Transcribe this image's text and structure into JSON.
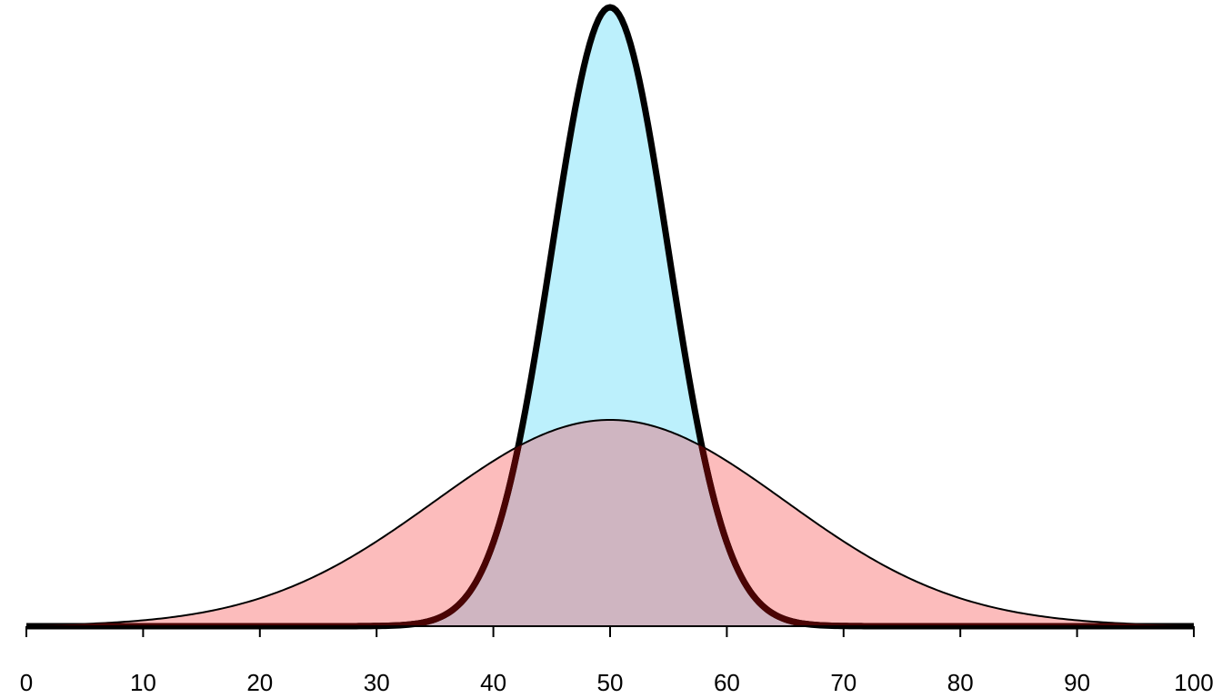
{
  "chart_data": {
    "type": "area",
    "title": "",
    "xlabel": "",
    "ylabel": "",
    "xlim": [
      0,
      100
    ],
    "x_ticks": [
      0,
      10,
      20,
      30,
      40,
      50,
      60,
      70,
      80,
      90,
      100
    ],
    "x_tick_labels": [
      "0",
      "10",
      "20",
      "30",
      "40",
      "50",
      "60",
      "70",
      "80",
      "90",
      "100"
    ],
    "y_axis_shown": false,
    "grid": false,
    "legend": "none",
    "series": [
      {
        "distribution": "normal",
        "mean": 50,
        "sd": 15,
        "fill_color": "#fcbcbc",
        "line_color": "#000000",
        "line_style": "thin"
      },
      {
        "distribution": "normal",
        "mean": 50,
        "sd": 5,
        "fill_color": "#bcf0fc",
        "line_color": "#000000",
        "line_style": "thick"
      }
    ],
    "overlap_color": "#cfb5c1"
  }
}
